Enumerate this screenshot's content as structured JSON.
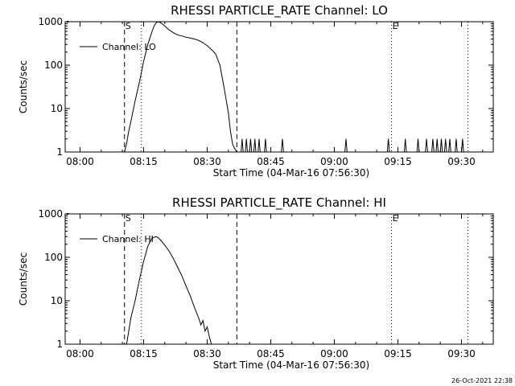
{
  "footer_timestamp": "26-Oct-2021 22:38",
  "chart_data": [
    {
      "type": "line",
      "title": "RHESSI PARTICLE_RATE Channel: LO",
      "xlabel": "Start Time (04-Mar-16 07:56:30)",
      "ylabel": "Counts/sec",
      "y_scale": "log",
      "xlim": [
        "07:56:30",
        "09:37:30"
      ],
      "ylim": [
        1,
        1000
      ],
      "x_ticks": [
        "08:00",
        "08:15",
        "08:30",
        "08:45",
        "09:00",
        "09:15",
        "09:30"
      ],
      "y_ticks": [
        "1",
        "10",
        "100",
        "1000"
      ],
      "legend": {
        "placement": "top-left",
        "label": "Channel: LO"
      },
      "markers": [
        {
          "label": "S",
          "time": "08:10:30",
          "style": "dashed"
        },
        {
          "label": "",
          "time": "08:14:30",
          "style": "dotted"
        },
        {
          "label": "",
          "time": "08:37:00",
          "style": "dashed"
        },
        {
          "label": "E",
          "time": "09:13:30",
          "style": "dotted"
        },
        {
          "label": "",
          "time": "09:31:30",
          "style": "dotted"
        }
      ],
      "series": [
        {
          "name": "Channel: LO",
          "x": [
            "08:10:30",
            "08:11:00",
            "08:11:30",
            "08:12:00",
            "08:13:00",
            "08:14:00",
            "08:15:00",
            "08:16:00",
            "08:17:00",
            "08:17:30",
            "08:18:00",
            "08:18:30",
            "08:19:00",
            "08:20:00",
            "08:21:00",
            "08:22:00",
            "08:23:00",
            "08:24:00",
            "08:25:00",
            "08:26:00",
            "08:27:00",
            "08:28:00",
            "08:29:00",
            "08:30:00",
            "08:31:00",
            "08:32:00",
            "08:33:00",
            "08:34:00",
            "08:35:00",
            "08:35:30",
            "08:36:00",
            "08:36:30",
            "08:37:00",
            "08:38:00",
            "08:38:15",
            "08:38:30",
            "08:39:00",
            "08:39:15",
            "08:39:30",
            "08:40:00",
            "08:40:15",
            "08:40:30",
            "08:41:00",
            "08:41:15",
            "08:41:30",
            "08:42:00",
            "08:42:15",
            "08:42:30",
            "08:43:30",
            "08:43:45",
            "08:44:00",
            "08:47:30",
            "08:47:45",
            "08:48:00",
            "09:02:30",
            "09:02:45",
            "09:03:00",
            "09:12:30",
            "09:12:45",
            "09:13:00",
            "09:16:30",
            "09:16:45",
            "09:17:00",
            "09:19:30",
            "09:19:45",
            "09:20:00",
            "09:21:30",
            "09:21:45",
            "09:22:00",
            "09:23:00",
            "09:23:15",
            "09:23:30",
            "09:24:00",
            "09:24:15",
            "09:24:30",
            "09:25:00",
            "09:25:15",
            "09:25:30",
            "09:26:00",
            "09:26:15",
            "09:26:30",
            "09:27:00",
            "09:27:15",
            "09:27:30",
            "09:28:30",
            "09:28:45",
            "09:29:00",
            "09:30:00",
            "09:30:15",
            "09:30:30"
          ],
          "values": [
            1,
            1.6,
            3,
            5,
            15,
            40,
            120,
            300,
            600,
            800,
            950,
            1000,
            950,
            800,
            650,
            560,
            500,
            470,
            440,
            420,
            400,
            370,
            330,
            280,
            230,
            180,
            100,
            30,
            8,
            3,
            1.5,
            1.2,
            1,
            1,
            2,
            1,
            1,
            2,
            1,
            1,
            2,
            1,
            1,
            2,
            1,
            1,
            2,
            1,
            1,
            2,
            1,
            1,
            2,
            1,
            1,
            2,
            1,
            1,
            2,
            1,
            1,
            2,
            1,
            1,
            2,
            1,
            1,
            2,
            1,
            1,
            2,
            1,
            1,
            2,
            1,
            1,
            2,
            1,
            1,
            2,
            1,
            1,
            2,
            1,
            1,
            2,
            1,
            1,
            2,
            1
          ]
        }
      ]
    },
    {
      "type": "line",
      "title": "RHESSI PARTICLE_RATE Channel: HI",
      "xlabel": "Start Time (04-Mar-16 07:56:30)",
      "ylabel": "Counts/sec",
      "y_scale": "log",
      "xlim": [
        "07:56:30",
        "09:37:30"
      ],
      "ylim": [
        1,
        1000
      ],
      "x_ticks": [
        "08:00",
        "08:15",
        "08:30",
        "08:45",
        "09:00",
        "09:15",
        "09:30"
      ],
      "y_ticks": [
        "1",
        "10",
        "100",
        "1000"
      ],
      "legend": {
        "placement": "top-left",
        "label": "Channel: HI"
      },
      "markers": [
        {
          "label": "S",
          "time": "08:10:30",
          "style": "dashed"
        },
        {
          "label": "",
          "time": "08:14:30",
          "style": "dotted"
        },
        {
          "label": "",
          "time": "08:37:00",
          "style": "dashed"
        },
        {
          "label": "E",
          "time": "09:13:30",
          "style": "dotted"
        },
        {
          "label": "",
          "time": "09:31:30",
          "style": "dotted"
        }
      ],
      "series": [
        {
          "name": "Channel: HI",
          "x": [
            "08:11:00",
            "08:11:30",
            "08:12:00",
            "08:13:00",
            "08:14:00",
            "08:15:00",
            "08:16:00",
            "08:17:00",
            "08:18:00",
            "08:18:30",
            "08:19:00",
            "08:20:00",
            "08:21:00",
            "08:22:00",
            "08:23:00",
            "08:24:00",
            "08:25:00",
            "08:26:00",
            "08:27:00",
            "08:28:00",
            "08:28:30",
            "08:29:00",
            "08:29:30",
            "08:30:00",
            "08:30:30",
            "08:31:00"
          ],
          "values": [
            1,
            2,
            4,
            10,
            30,
            80,
            180,
            280,
            300,
            280,
            250,
            190,
            140,
            95,
            60,
            38,
            22,
            13,
            7,
            4,
            2.8,
            3.5,
            2,
            2.5,
            1.5,
            1
          ]
        }
      ]
    }
  ]
}
